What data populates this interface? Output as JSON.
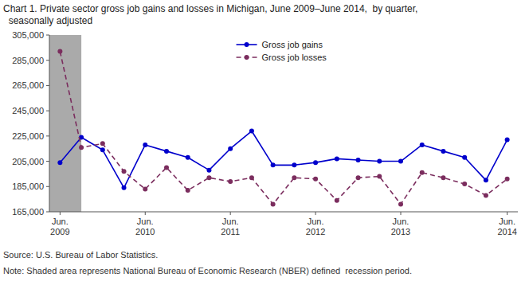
{
  "chart_data": {
    "type": "line",
    "title": "Chart 1. Private sector gross job gains and losses in Michigan, June 2009–June 2014,  by quarter,",
    "subtitle": "  seasonally adjusted",
    "annotations": [
      "Source: U.S. Bureau of Labor Statistics.",
      "Note: Shaded area represents National Bureau of Economic Research (NBER) defined  recession period."
    ],
    "categories": [
      "Jun.\n2009",
      null,
      null,
      null,
      "Jun.\n2010",
      null,
      null,
      null,
      "Jun.\n2011",
      null,
      null,
      null,
      "Jun.\n2012",
      null,
      null,
      null,
      "Jun.\n2013",
      null,
      null,
      null,
      null,
      "Jun.\n2014"
    ],
    "series": [
      {
        "name": "Gross job gains",
        "color": "#0000CC",
        "marker": "circle",
        "line_style": "solid",
        "values": [
          204000,
          224000,
          214000,
          184000,
          218000,
          213000,
          208000,
          198000,
          215000,
          229000,
          202000,
          202000,
          204000,
          207000,
          206000,
          205000,
          205000,
          218000,
          213000,
          208000,
          190000,
          222000
        ]
      },
      {
        "name": "Gross job losses",
        "color": "#7B2D5E",
        "marker": "circle",
        "line_style": "dashed",
        "values": [
          292000,
          216000,
          219000,
          197000,
          183000,
          200000,
          182000,
          192000,
          189000,
          192000,
          171000,
          192000,
          191000,
          174000,
          192000,
          193000,
          171000,
          196000,
          192000,
          187000,
          178000,
          191000
        ]
      }
    ],
    "ylim": [
      165000,
      305000
    ],
    "yticks": [
      {
        "value": 165000,
        "label": "165,000"
      },
      {
        "value": 185000,
        "label": "185,000"
      },
      {
        "value": 205000,
        "label": "205,000"
      },
      {
        "value": 225000,
        "label": "225,000"
      },
      {
        "value": 245000,
        "label": "245,000"
      },
      {
        "value": 265000,
        "label": "265,000"
      },
      {
        "value": 285000,
        "label": "285,000"
      },
      {
        "value": 305000,
        "label": "305,000"
      }
    ],
    "shading": {
      "start": -0.5,
      "end": 1.0,
      "color": "#AAAAAA"
    },
    "grid": false,
    "legend": "upper center"
  }
}
